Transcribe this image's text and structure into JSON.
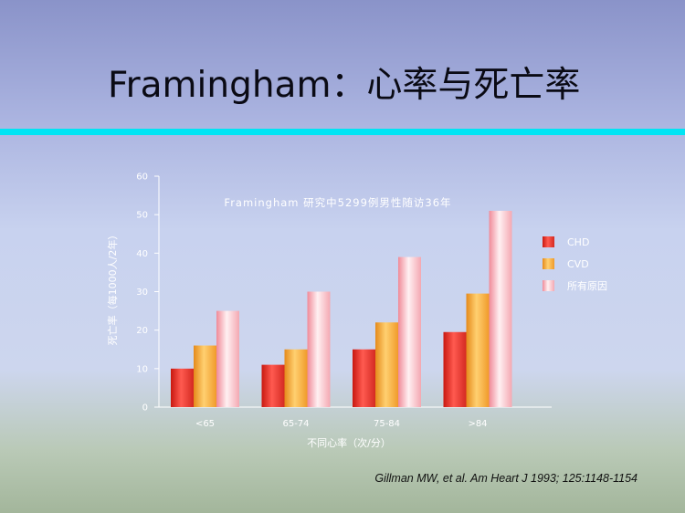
{
  "slide": {
    "title": "Framingham：心率与死亡率",
    "citation": "Gillman MW, et al. Am  Heart J  1993; 125:1148-1154"
  },
  "chart_data": {
    "type": "bar",
    "title": "Framingham 研究中5299例男性随访36年",
    "xlabel": "不同心率（次/分）",
    "ylabel": "死亡率（每1000人/2年）",
    "categories": [
      "<65",
      "65-74",
      "75-84",
      ">84"
    ],
    "ylim": [
      0,
      60
    ],
    "yticks": [
      0,
      10,
      20,
      30,
      40,
      50,
      60
    ],
    "grid": false,
    "legend_position": "right",
    "series": [
      {
        "name": "CHD",
        "values": [
          10,
          11,
          15,
          19.5
        ],
        "color": "#e8302a"
      },
      {
        "name": "CVD",
        "values": [
          16,
          15,
          22,
          29.5
        ],
        "color": "#f5a030"
      },
      {
        "name": "所有原因",
        "values": [
          25,
          30,
          39,
          51
        ],
        "color": "#f6b4bc"
      }
    ]
  }
}
